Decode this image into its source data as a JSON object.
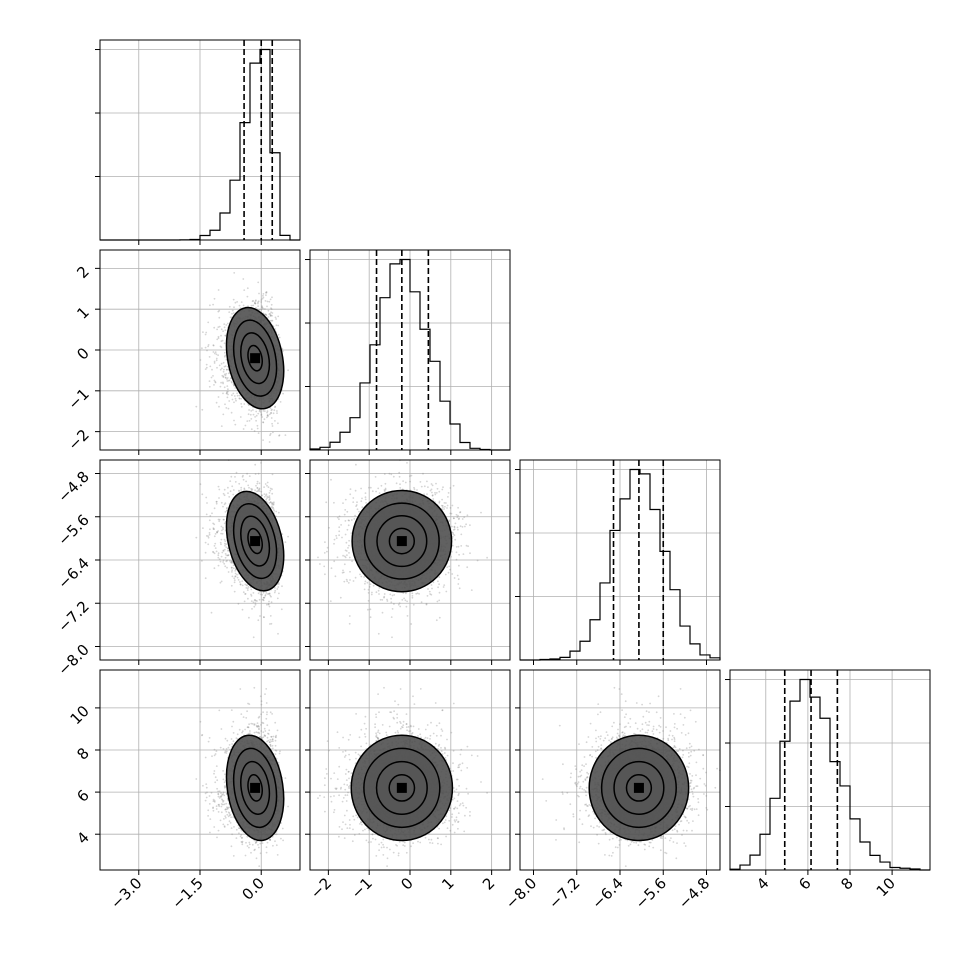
{
  "chart_data": {
    "type": "corner",
    "title": "",
    "parameters": [
      {
        "axis_ticks": [
          -3.0,
          -1.5,
          0.0
        ],
        "tick_labels": [
          "−3.0",
          "−1.5",
          "0.0"
        ],
        "range": [
          -3.95,
          0.95
        ],
        "mean": -0.15,
        "std": 0.35,
        "skew": -4,
        "quantiles": [
          -0.42,
          0.0,
          0.27
        ]
      },
      {
        "axis_ticks": [
          -2,
          -1,
          0,
          1,
          2
        ],
        "tick_labels": [
          "−2",
          "−1",
          "0",
          "1",
          "2"
        ],
        "range": [
          -2.45,
          2.45
        ],
        "mean": -0.2,
        "std": 0.62,
        "skew": 0,
        "quantiles": [
          -0.82,
          -0.2,
          0.45
        ]
      },
      {
        "axis_ticks": [
          -8.0,
          -7.2,
          -6.4,
          -5.6,
          -4.8
        ],
        "tick_labels": [
          "−8.0",
          "−7.2",
          "−6.4",
          "−5.6",
          "−4.8"
        ],
        "range": [
          -8.25,
          -4.55
        ],
        "mean": -6.05,
        "std": 0.46,
        "skew": 0,
        "quantiles": [
          -6.52,
          -6.05,
          -5.6
        ]
      },
      {
        "axis_ticks": [
          4,
          6,
          8,
          10
        ],
        "tick_labels": [
          "4",
          "6",
          "8",
          "10"
        ],
        "range": [
          2.3,
          11.8
        ],
        "mean": 6.2,
        "std": 1.25,
        "skew": 1.5,
        "quantiles": [
          4.9,
          6.15,
          7.4
        ]
      }
    ],
    "correlations": [
      [
        1.0,
        -0.25,
        -0.3,
        -0.2
      ],
      [
        -0.25,
        1.0,
        0.0,
        0.0
      ],
      [
        -0.3,
        0.0,
        1.0,
        0.0
      ],
      [
        -0.2,
        0.0,
        0.0,
        1.0
      ]
    ],
    "histogram_bins": 20,
    "contour_levels": [
      0.5,
      1.0,
      1.5,
      2.0
    ],
    "grid": true,
    "colors": {
      "line": "#000000",
      "grid": "#b0b0b0",
      "points": "#888888",
      "density": "#000000"
    }
  }
}
